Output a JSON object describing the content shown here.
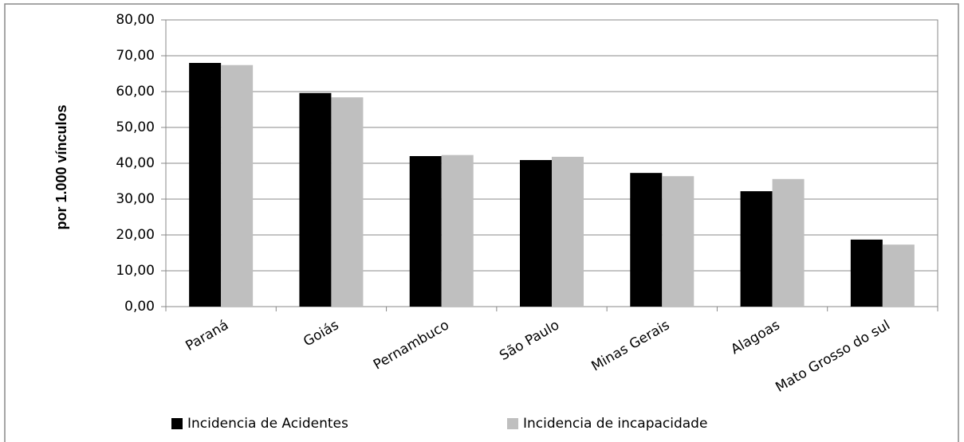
{
  "chart_data": {
    "type": "bar",
    "y_label": "por 1.000 vínculos",
    "categories": [
      "Paraná",
      "Goiás",
      "Pernambuco",
      "São Paulo",
      "Minas Gerais",
      "Alagoas",
      "Mato Grosso do sul"
    ],
    "series": [
      {
        "name": "Incidencia de Acidentes",
        "color": "#000000",
        "values": [
          68.0,
          59.6,
          42.0,
          40.9,
          37.3,
          32.2,
          18.7
        ]
      },
      {
        "name": "Incidencia de incapacidade",
        "color": "#bfbfbf",
        "values": [
          67.4,
          58.4,
          42.3,
          41.8,
          36.4,
          35.6,
          17.3
        ]
      }
    ],
    "ylim": [
      0,
      80
    ],
    "yticks": [
      {
        "value": 0,
        "label": "0,00"
      },
      {
        "value": 10,
        "label": "10,00"
      },
      {
        "value": 20,
        "label": "20,00"
      },
      {
        "value": 30,
        "label": "30,00"
      },
      {
        "value": 40,
        "label": "40,00"
      },
      {
        "value": 50,
        "label": "50,00"
      },
      {
        "value": 60,
        "label": "60,00"
      },
      {
        "value": 70,
        "label": "70,00"
      },
      {
        "value": 80,
        "label": "80,00"
      }
    ],
    "grid": true,
    "legend": "bottom"
  }
}
